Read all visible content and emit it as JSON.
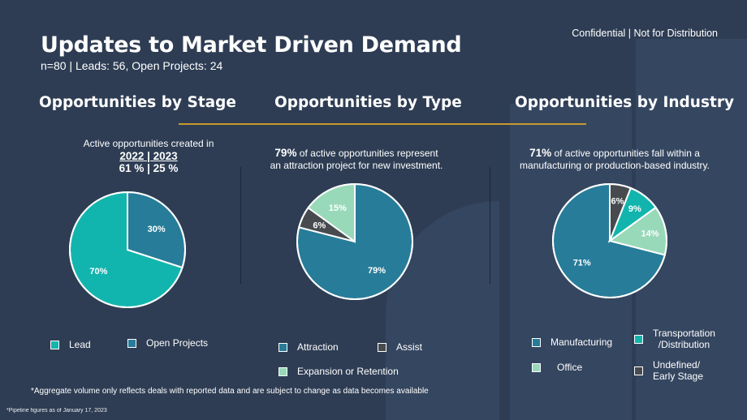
{
  "header": {
    "title": "Updates to Market Driven Demand",
    "subtitle": "n=80 | Leads: 56, Open Projects: 24",
    "confidential": "Confidential | Not for Distribution"
  },
  "sections": {
    "stage": {
      "title": "Opportunities by Stage",
      "desc_line1": "Active opportunities created in",
      "years": "2022 | 2023",
      "percents": "61 % | 25 %"
    },
    "type": {
      "title": "Opportunities by Type",
      "highlight": "79%",
      "desc_rest": "of active opportunities represent",
      "desc_line2": "an attraction project for new investment."
    },
    "industry": {
      "title": "Opportunities by Industry",
      "highlight": "71%",
      "desc_rest": "of active opportunities fall within a",
      "desc_line2": "manufacturing or production-based industry."
    }
  },
  "footnote": "*Aggregate volume only reflects deals with reported data and are subject to change as data becomes available",
  "footnote2": "*Pipeline figures as of January 17, 2023",
  "chart_data": [
    {
      "type": "pie",
      "title": "Opportunities by Stage",
      "slices": [
        {
          "name": "Lead",
          "value": 70,
          "label": "70%",
          "color": "#12b5ad"
        },
        {
          "name": "Open Projects",
          "value": 30,
          "label": "30%",
          "color": "#277c99"
        }
      ]
    },
    {
      "type": "pie",
      "title": "Opportunities by Type",
      "slices": [
        {
          "name": "Attraction",
          "value": 79,
          "label": "79%",
          "color": "#277c99"
        },
        {
          "name": "Assist",
          "value": 6,
          "label": "6%",
          "color": "#474b4f"
        },
        {
          "name": "Expansion or Retention",
          "value": 15,
          "label": "15%",
          "color": "#98d9b9"
        }
      ]
    },
    {
      "type": "pie",
      "title": "Opportunities by Industry",
      "slices": [
        {
          "name": "Manufacturing",
          "value": 71,
          "label": "71%",
          "color": "#277c99"
        },
        {
          "name": "Office",
          "value": 14,
          "label": "14%",
          "color": "#98d9b9"
        },
        {
          "name": "Transportation /Distribution",
          "value": 9,
          "label": "9%",
          "color": "#12b5ad"
        },
        {
          "name": "Undefined/ Early Stage",
          "value": 6,
          "label": "6%",
          "color": "#474b4f"
        }
      ]
    }
  ],
  "legends": {
    "stage": [
      {
        "label": "Lead",
        "color": "#12b5ad"
      },
      {
        "label": "Open Projects",
        "color": "#277c99"
      }
    ],
    "type": [
      {
        "label": "Attraction",
        "color": "#277c99"
      },
      {
        "label": "Assist",
        "color": "#474b4f"
      },
      {
        "label": "Expansion or Retention",
        "color": "#98d9b9"
      }
    ],
    "industry": [
      {
        "label": "Manufacturing",
        "color": "#277c99"
      },
      {
        "label": "Transportation",
        "label2": "/Distribution",
        "color": "#12b5ad"
      },
      {
        "label": "Office",
        "color": "#98d9b9"
      },
      {
        "label": "Undefined/",
        "label2": "Early Stage",
        "color": "#474b4f"
      }
    ]
  }
}
